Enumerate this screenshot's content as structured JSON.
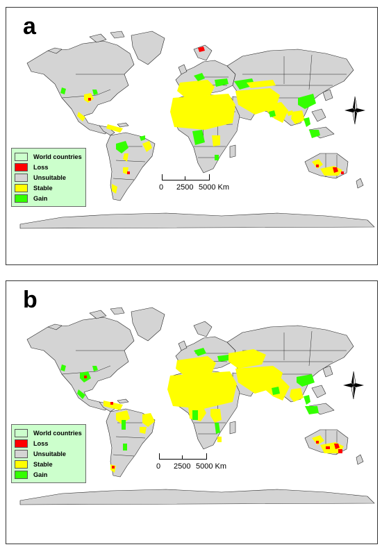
{
  "figure": {
    "panels": [
      {
        "id": "a",
        "letter": "a"
      },
      {
        "id": "b",
        "letter": "b"
      }
    ]
  },
  "legend": {
    "items": [
      {
        "label": "World countries",
        "color": "#ccffcc"
      },
      {
        "label": "Loss",
        "color": "#ff0000"
      },
      {
        "label": "Unsuitable",
        "color": "#d4d4d4"
      },
      {
        "label": "Stable",
        "color": "#ffff00"
      },
      {
        "label": "Gain",
        "color": "#33ff00"
      }
    ]
  },
  "scale_bar": {
    "label_0": "0",
    "label_mid": "2500",
    "label_end": "5000 Km"
  },
  "compass": {
    "icon": "north-arrow-compass-icon"
  },
  "colors": {
    "land": "#d4d4d4",
    "border": "#222222",
    "stable": "#ffff00",
    "gain": "#33ff00",
    "loss": "#ff0000",
    "legend_bg": "#ccffcc"
  }
}
